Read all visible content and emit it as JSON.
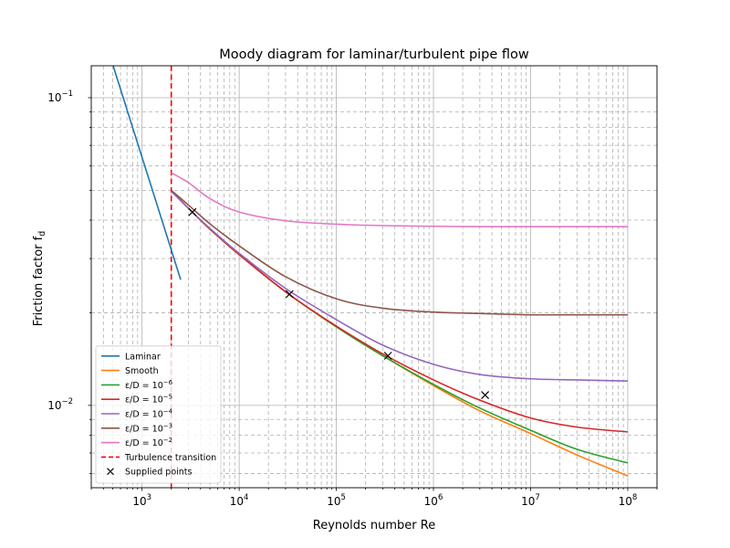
{
  "chart_data": {
    "type": "line",
    "title": "Moody diagram for laminar/turbulent pipe flow",
    "xlabel": "Reynolds number Re",
    "ylabel": "Friction factor f",
    "ylabel_sub": "d",
    "xscale": "log",
    "yscale": "log",
    "xlim": [
      300,
      200000000
    ],
    "ylim": [
      0.0054,
      0.127
    ],
    "x_ticks": [
      {
        "value": 1000,
        "base": "10",
        "exp": "3"
      },
      {
        "value": 10000,
        "base": "10",
        "exp": "4"
      },
      {
        "value": 100000,
        "base": "10",
        "exp": "5"
      },
      {
        "value": 1000000,
        "base": "10",
        "exp": "6"
      },
      {
        "value": 10000000,
        "base": "10",
        "exp": "7"
      },
      {
        "value": 100000000,
        "base": "10",
        "exp": "8"
      }
    ],
    "y_ticks": [
      {
        "value": 0.01,
        "base": "10",
        "exp": "−2"
      },
      {
        "value": 0.1,
        "base": "10",
        "exp": "−1"
      }
    ],
    "grid": true,
    "legend_position": "lower-left",
    "transition_re": 2000,
    "series": [
      {
        "name": "Laminar",
        "name_parts": {
          "text": "Laminar"
        },
        "color": "#1f77b4",
        "style": "solid",
        "x": [
          500,
          1000,
          1500,
          2000,
          2500
        ],
        "y": [
          0.128,
          0.064,
          0.0427,
          0.032,
          0.0256
        ]
      },
      {
        "name": "Smooth",
        "name_parts": {
          "text": "Smooth"
        },
        "color": "#ff7f0e",
        "style": "solid",
        "x": [
          2000,
          3000,
          5000,
          10000,
          30000,
          100000,
          300000,
          1000000,
          3000000,
          10000000,
          30000000,
          100000000
        ],
        "y": [
          0.0497,
          0.0437,
          0.0374,
          0.0309,
          0.0234,
          0.018,
          0.0145,
          0.0116,
          0.0096,
          0.0081,
          0.0069,
          0.0059
        ]
      },
      {
        "name": "ε/D = 10^-6",
        "name_parts": {
          "prefix": "ε/D = 10",
          "exp": "−6"
        },
        "color": "#2ca02c",
        "style": "solid",
        "x": [
          2000,
          3000,
          5000,
          10000,
          30000,
          100000,
          300000,
          1000000,
          3000000,
          10000000,
          30000000,
          100000000
        ],
        "y": [
          0.0497,
          0.0437,
          0.0374,
          0.0309,
          0.0234,
          0.018,
          0.0145,
          0.0117,
          0.0098,
          0.0083,
          0.0072,
          0.0065
        ]
      },
      {
        "name": "ε/D = 10^-5",
        "name_parts": {
          "prefix": "ε/D = 10",
          "exp": "−5"
        },
        "color": "#d62728",
        "style": "solid",
        "x": [
          2000,
          3000,
          5000,
          10000,
          30000,
          100000,
          300000,
          1000000,
          3000000,
          10000000,
          30000000,
          100000000
        ],
        "y": [
          0.0497,
          0.0437,
          0.0374,
          0.0309,
          0.0234,
          0.0181,
          0.0147,
          0.0121,
          0.0104,
          0.0091,
          0.0085,
          0.0082
        ]
      },
      {
        "name": "ε/D = 10^-4",
        "name_parts": {
          "prefix": "ε/D = 10",
          "exp": "−4"
        },
        "color": "#9467bd",
        "style": "solid",
        "x": [
          2000,
          3000,
          5000,
          10000,
          30000,
          100000,
          300000,
          1000000,
          3000000,
          10000000,
          30000000,
          100000000
        ],
        "y": [
          0.0497,
          0.0437,
          0.0376,
          0.0312,
          0.024,
          0.019,
          0.0157,
          0.0136,
          0.0126,
          0.0122,
          0.0121,
          0.012
        ]
      },
      {
        "name": "ε/D = 10^-3",
        "name_parts": {
          "prefix": "ε/D = 10",
          "exp": "−3"
        },
        "color": "#8c564b",
        "style": "solid",
        "x": [
          2000,
          3000,
          5000,
          10000,
          30000,
          100000,
          300000,
          1000000,
          3000000,
          10000000,
          30000000,
          100000000
        ],
        "y": [
          0.05,
          0.0448,
          0.0389,
          0.033,
          0.0262,
          0.0222,
          0.0207,
          0.0201,
          0.0199,
          0.0197,
          0.0197,
          0.0197
        ]
      },
      {
        "name": "ε/D = 10^-2",
        "name_parts": {
          "prefix": "ε/D = 10",
          "exp": "−2"
        },
        "color": "#e377c2",
        "style": "solid",
        "x": [
          2000,
          3000,
          5000,
          10000,
          30000,
          100000,
          300000,
          1000000,
          3000000,
          10000000,
          30000000,
          100000000
        ],
        "y": [
          0.057,
          0.053,
          0.047,
          0.0425,
          0.0398,
          0.0388,
          0.0384,
          0.0382,
          0.0381,
          0.0381,
          0.0381,
          0.0381
        ]
      }
    ],
    "transition_series": {
      "name": "Turbulence transition",
      "color": "#ff0000",
      "style": "dashed"
    },
    "points_series": {
      "name": "Supplied points",
      "marker": "x",
      "color": "#000000",
      "x": [
        3300,
        33000,
        340000,
        3400000
      ],
      "y": [
        0.0425,
        0.023,
        0.0145,
        0.0108
      ]
    }
  }
}
